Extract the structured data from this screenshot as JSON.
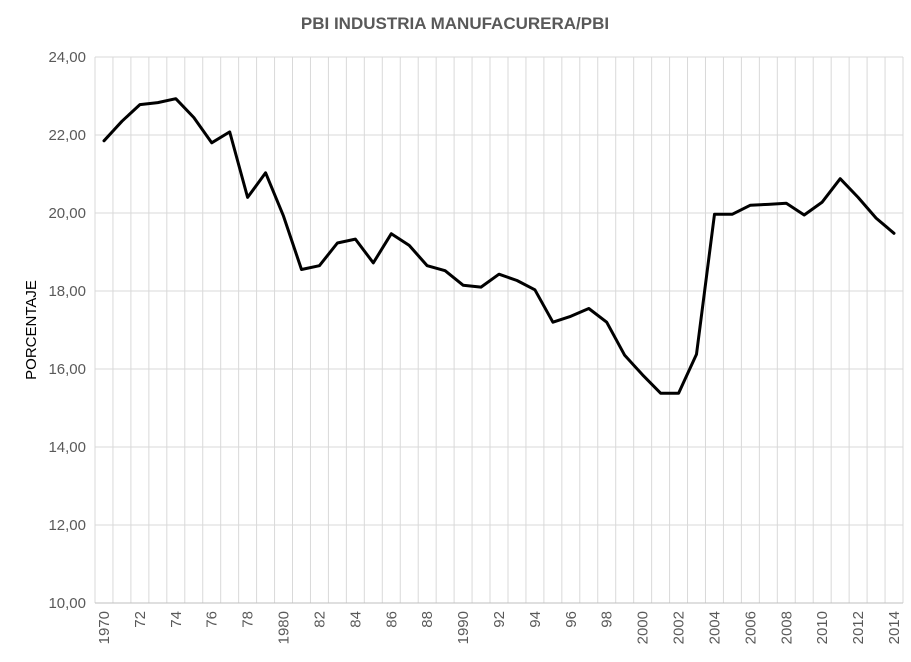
{
  "chart_data": {
    "type": "line",
    "title": "PBI INDUSTRIA  MANUFACURERA/PBI",
    "ylabel": "PORCENTAJE",
    "ylim": [
      10,
      24
    ],
    "yticks": [
      "10,00",
      "12,00",
      "14,00",
      "16,00",
      "18,00",
      "20,00",
      "22,00",
      "24,00"
    ],
    "ytick_values": [
      10,
      12,
      14,
      16,
      18,
      20,
      22,
      24
    ],
    "x": [
      1970,
      1971,
      1972,
      1973,
      1974,
      1975,
      1976,
      1977,
      1978,
      1979,
      1980,
      1981,
      1982,
      1983,
      1984,
      1985,
      1986,
      1987,
      1988,
      1989,
      1990,
      1991,
      1992,
      1993,
      1994,
      1995,
      1996,
      1997,
      1998,
      1999,
      2000,
      2001,
      2002,
      2003,
      2004,
      2005,
      2006,
      2007,
      2008,
      2009,
      2010,
      2011,
      2012,
      2013,
      2014
    ],
    "xticks": [
      {
        "x": 1970,
        "label": "1970"
      },
      {
        "x": 1972,
        "label": "72"
      },
      {
        "x": 1974,
        "label": "74"
      },
      {
        "x": 1976,
        "label": "76"
      },
      {
        "x": 1978,
        "label": "78"
      },
      {
        "x": 1980,
        "label": "1980"
      },
      {
        "x": 1982,
        "label": "82"
      },
      {
        "x": 1984,
        "label": "84"
      },
      {
        "x": 1986,
        "label": "86"
      },
      {
        "x": 1988,
        "label": "88"
      },
      {
        "x": 1990,
        "label": "1990"
      },
      {
        "x": 1992,
        "label": "92"
      },
      {
        "x": 1994,
        "label": "94"
      },
      {
        "x": 1996,
        "label": "96"
      },
      {
        "x": 1998,
        "label": "98"
      },
      {
        "x": 2000,
        "label": "2000"
      },
      {
        "x": 2002,
        "label": "2002"
      },
      {
        "x": 2004,
        "label": "2004"
      },
      {
        "x": 2006,
        "label": "2006"
      },
      {
        "x": 2008,
        "label": "2008"
      },
      {
        "x": 2010,
        "label": "2010"
      },
      {
        "x": 2012,
        "label": "2012"
      },
      {
        "x": 2014,
        "label": "2014"
      }
    ],
    "series": [
      {
        "color": "#000000",
        "values": [
          21.85,
          22.35,
          22.78,
          22.83,
          22.93,
          22.45,
          21.8,
          22.08,
          20.4,
          21.03,
          19.92,
          18.55,
          18.65,
          19.23,
          19.33,
          18.72,
          19.47,
          19.17,
          18.65,
          18.52,
          18.15,
          18.1,
          18.43,
          18.27,
          18.03,
          17.2,
          17.35,
          17.55,
          17.2,
          16.35,
          15.85,
          15.38,
          15.38,
          16.38,
          19.97,
          19.97,
          20.2,
          20.22,
          20.25,
          19.95,
          20.28,
          20.88,
          20.4,
          19.87,
          19.48
        ]
      }
    ],
    "grid": {
      "horizontal": true,
      "vertical": true
    },
    "legend": "none"
  }
}
